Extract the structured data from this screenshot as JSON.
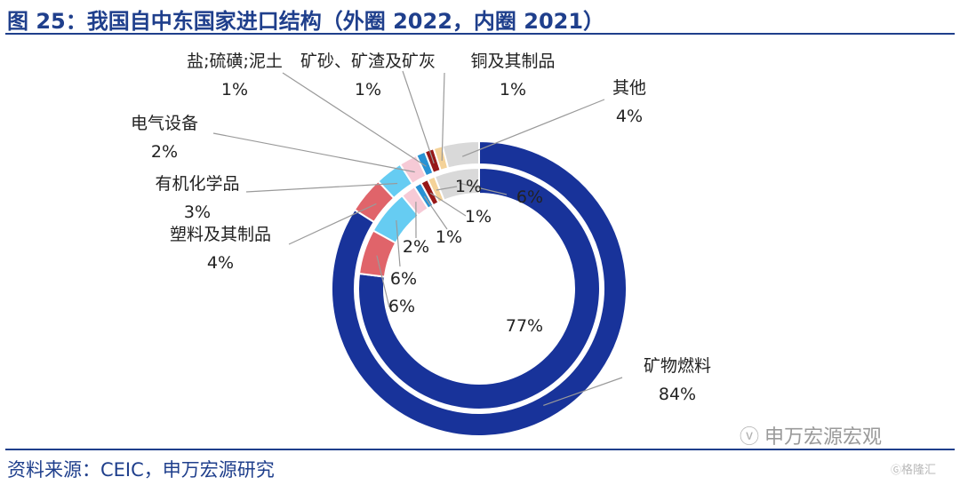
{
  "title": "图 25：我国自中东国家进口结构（外圈 2022，内圈 2021）",
  "source": "资料来源：CEIC，申万宏源研究",
  "watermark": {
    "text": "申万宏源宏观",
    "icon": "wechat-icon"
  },
  "badge": {
    "text": "格隆汇",
    "icon": "glh-logo-icon"
  },
  "colors": {
    "title": "#1f3f8c",
    "slice_fills": [
      "#18339a",
      "#e0646a",
      "#66ccf2",
      "#f6cad6",
      "#2892d4",
      "#961818",
      "#f4d298",
      "#d9d9d9"
    ]
  },
  "chart_data": {
    "type": "pie",
    "categories": [
      "矿物燃料",
      "塑料及其制品",
      "有机化学品",
      "电气设备",
      "盐;硫磺;泥土",
      "矿砂、矿渣及矿灰",
      "铜及其制品",
      "其他"
    ],
    "series": [
      {
        "name": "外圈 2022",
        "values": [
          84,
          4,
          3,
          2,
          1,
          1,
          1,
          4
        ]
      },
      {
        "name": "内圈 2021",
        "values": [
          77,
          6,
          6,
          2,
          1,
          1,
          1,
          6
        ]
      }
    ],
    "outer_labels": [
      {
        "name": "矿物燃料",
        "pct": "84%"
      },
      {
        "name": "塑料及其制品",
        "pct": "4%"
      },
      {
        "name": "有机化学品",
        "pct": "3%"
      },
      {
        "name": "电气设备",
        "pct": "2%"
      },
      {
        "name": "盐;硫磺;泥土",
        "pct": "1%"
      },
      {
        "name": "矿砂、矿渣及矿灰",
        "pct": "1%"
      },
      {
        "name": "铜及其制品",
        "pct": "1%"
      },
      {
        "name": "其他",
        "pct": "4%"
      }
    ],
    "inner_labels": [
      "77%",
      "6%",
      "6%",
      "2%",
      "1%",
      "1%",
      "1%",
      "6%"
    ],
    "legend": "none"
  }
}
